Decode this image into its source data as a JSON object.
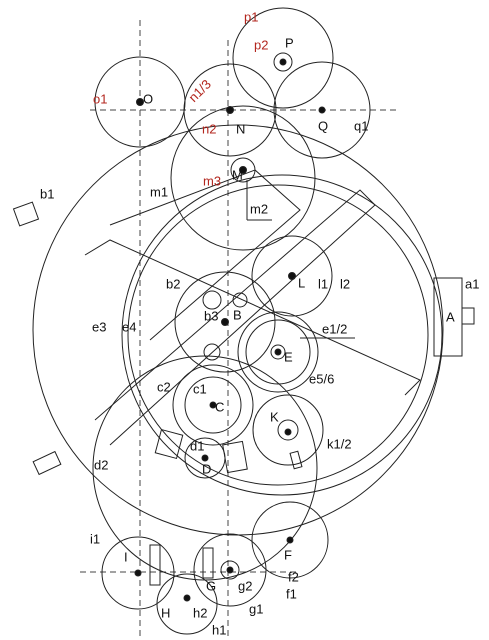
{
  "labels": [
    "p1",
    "p2",
    "P",
    "o1",
    "O",
    "n1/3",
    "N",
    "n2",
    "Q",
    "q1",
    "m3",
    "M",
    "m1",
    "m2",
    "b1",
    "a1",
    "A",
    "L",
    "l1",
    "l2",
    "b2",
    "b3",
    "B",
    "E",
    "e1/2",
    "e3",
    "e4",
    "e5/6",
    "c1",
    "C",
    "c2",
    "K",
    "k1/2",
    "d1",
    "D",
    "d2",
    "i1",
    "I",
    "F",
    "f2",
    "f1",
    "G",
    "g2",
    "g1",
    "H",
    "h2",
    "h1"
  ]
}
